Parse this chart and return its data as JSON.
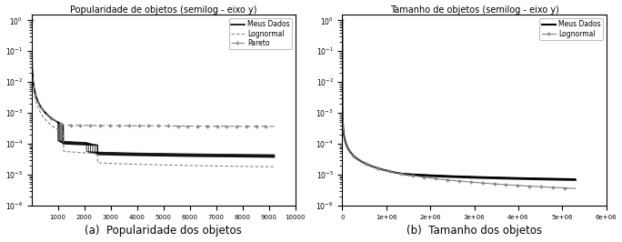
{
  "left_title": "Popularidade de objetos (semilog - eixo y)",
  "right_title": "Tamanho de objetos (semilog - eixo y)",
  "left_xlabel": "(a)  Popularidade dos objetos",
  "right_xlabel": "(b)  Tamanho dos objetos",
  "left_xlim": [
    0,
    10000
  ],
  "right_xlim": [
    0,
    6000000
  ],
  "ylim": [
    1e-06,
    1.5
  ],
  "legend_left": [
    "Meus Dados",
    "Lognormal",
    "Pareto"
  ],
  "legend_right": [
    "Meus Dados",
    "Lognormal"
  ],
  "bg_color": "#ffffff"
}
